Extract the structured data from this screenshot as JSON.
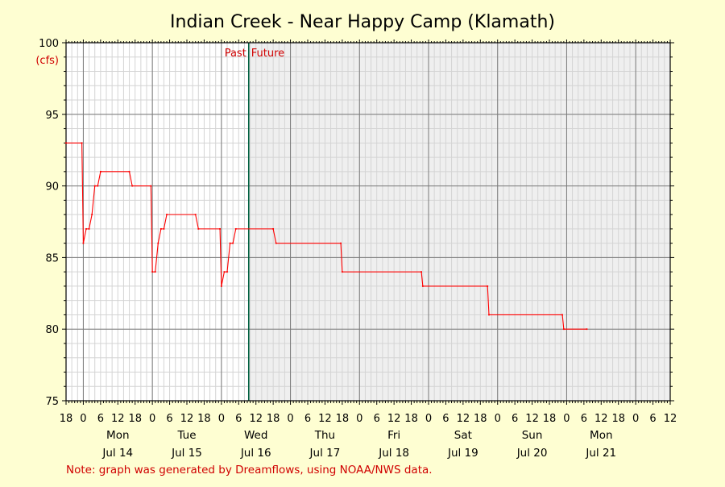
{
  "chart_data": {
    "type": "line",
    "title": "Indian Creek - Near Happy Camp (Klamath)",
    "ylabel": "(cfs)",
    "ylim": [
      75,
      100
    ],
    "y_ticks": [
      75,
      80,
      85,
      90,
      95,
      100
    ],
    "x_unit": "hours since Sun Jul 13 00:00",
    "xlim": [
      -6,
      204
    ],
    "x_ticks": [
      {
        "h": -6,
        "label": "18"
      },
      {
        "h": 0,
        "label": "0"
      },
      {
        "h": 6,
        "label": "6"
      },
      {
        "h": 12,
        "label": "12"
      },
      {
        "h": 18,
        "label": "18"
      },
      {
        "h": 24,
        "label": "0"
      },
      {
        "h": 30,
        "label": "6"
      },
      {
        "h": 36,
        "label": "12"
      },
      {
        "h": 42,
        "label": "18"
      },
      {
        "h": 48,
        "label": "0"
      },
      {
        "h": 54,
        "label": "6"
      },
      {
        "h": 60,
        "label": "12"
      },
      {
        "h": 66,
        "label": "18"
      },
      {
        "h": 72,
        "label": "0"
      },
      {
        "h": 78,
        "label": "6"
      },
      {
        "h": 84,
        "label": "12"
      },
      {
        "h": 90,
        "label": "18"
      },
      {
        "h": 96,
        "label": "0"
      },
      {
        "h": 102,
        "label": "6"
      },
      {
        "h": 108,
        "label": "12"
      },
      {
        "h": 114,
        "label": "18"
      },
      {
        "h": 120,
        "label": "0"
      },
      {
        "h": 126,
        "label": "6"
      },
      {
        "h": 132,
        "label": "12"
      },
      {
        "h": 138,
        "label": "18"
      },
      {
        "h": 144,
        "label": "0"
      },
      {
        "h": 150,
        "label": "6"
      },
      {
        "h": 156,
        "label": "12"
      },
      {
        "h": 162,
        "label": "18"
      },
      {
        "h": 168,
        "label": "0"
      },
      {
        "h": 174,
        "label": "6"
      },
      {
        "h": 180,
        "label": "12"
      },
      {
        "h": 186,
        "label": "18"
      },
      {
        "h": 192,
        "label": "0"
      },
      {
        "h": 198,
        "label": "6"
      },
      {
        "h": 204,
        "label": "12"
      }
    ],
    "day_labels": [
      {
        "h": 12,
        "weekday": "Mon",
        "date": "Jul 14"
      },
      {
        "h": 36,
        "weekday": "Tue",
        "date": "Jul 15"
      },
      {
        "h": 60,
        "weekday": "Wed",
        "date": "Jul 16"
      },
      {
        "h": 84,
        "weekday": "Thu",
        "date": "Jul 17"
      },
      {
        "h": 108,
        "weekday": "Fri",
        "date": "Jul 18"
      },
      {
        "h": 132,
        "weekday": "Sat",
        "date": "Jul 19"
      },
      {
        "h": 156,
        "weekday": "Sun",
        "date": "Jul 20"
      },
      {
        "h": 180,
        "weekday": "Mon",
        "date": "Jul 21"
      }
    ],
    "now_h": 57.5,
    "past_label": "Past",
    "future_label": "Future",
    "grid": true,
    "colors": {
      "line": "#ff0000",
      "past_bg": "#ffffff",
      "future_bg": "#efefef",
      "now_line": "#006040",
      "grid_minor": "#d4d4d4",
      "grid_major": "#7a7a7a"
    },
    "series": [
      {
        "points": [
          [
            -6,
            93
          ],
          [
            -0.5,
            93
          ],
          [
            0,
            86
          ],
          [
            1,
            87
          ],
          [
            2,
            87
          ],
          [
            3,
            88
          ],
          [
            4,
            90
          ],
          [
            5,
            90
          ],
          [
            6,
            91
          ],
          [
            16,
            91
          ],
          [
            17,
            90
          ],
          [
            23.5,
            90
          ],
          [
            24,
            84
          ],
          [
            25,
            84
          ],
          [
            26,
            86
          ],
          [
            27,
            87
          ],
          [
            28,
            87
          ],
          [
            29,
            88
          ],
          [
            39,
            88
          ],
          [
            40,
            87
          ],
          [
            47.5,
            87
          ],
          [
            48,
            83
          ],
          [
            49,
            84
          ],
          [
            50,
            84
          ],
          [
            51,
            86
          ],
          [
            52,
            86
          ],
          [
            53,
            87
          ],
          [
            66,
            87
          ],
          [
            67,
            86
          ],
          [
            89.5,
            86
          ],
          [
            90,
            84
          ],
          [
            117.5,
            84
          ],
          [
            118,
            83
          ],
          [
            140.5,
            83
          ],
          [
            141,
            81
          ],
          [
            166.5,
            81
          ],
          [
            167,
            80
          ],
          [
            175,
            80
          ]
        ]
      }
    ]
  },
  "footer": {
    "note": "Note: graph was generated by Dreamflows, using NOAA/NWS data."
  }
}
